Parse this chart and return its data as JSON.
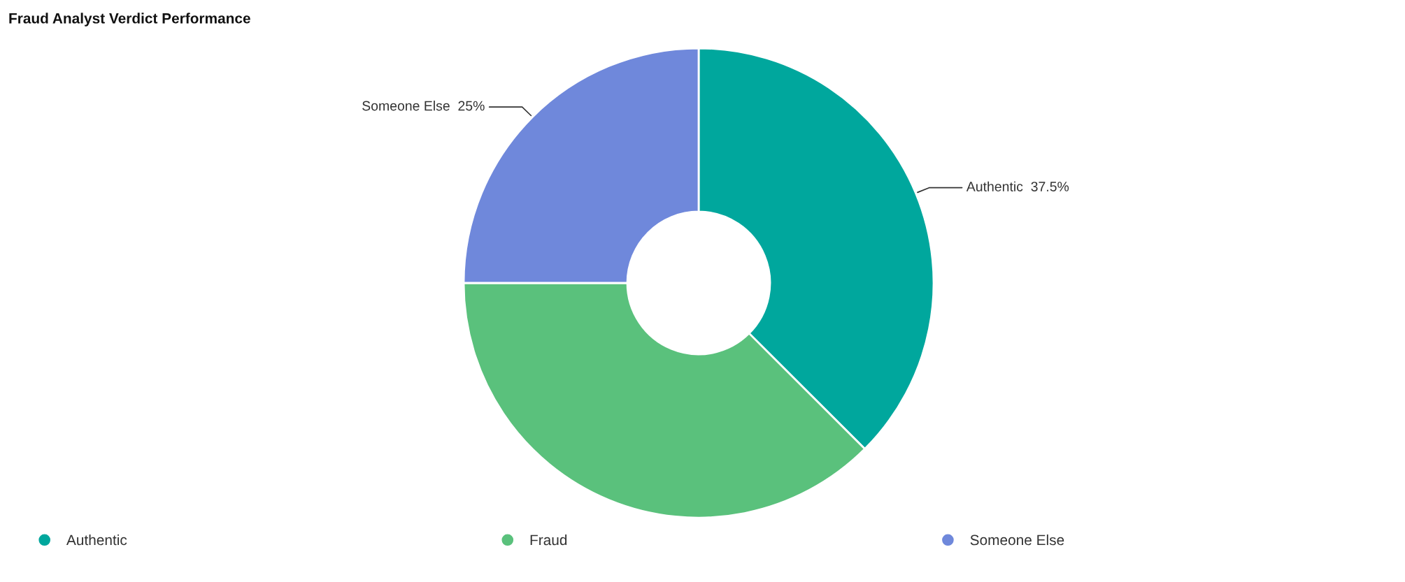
{
  "chart_data": {
    "type": "donut",
    "title": "Fraud Analyst Verdict Performance",
    "categories": [
      "Authentic",
      "Fraud",
      "Someone Else"
    ],
    "values": [
      37.5,
      37.5,
      25
    ],
    "colors": [
      "#00a79d",
      "#5ac17c",
      "#6f88db"
    ],
    "value_labels": [
      "37.5%",
      null,
      "25%"
    ],
    "legend": "bottom"
  }
}
